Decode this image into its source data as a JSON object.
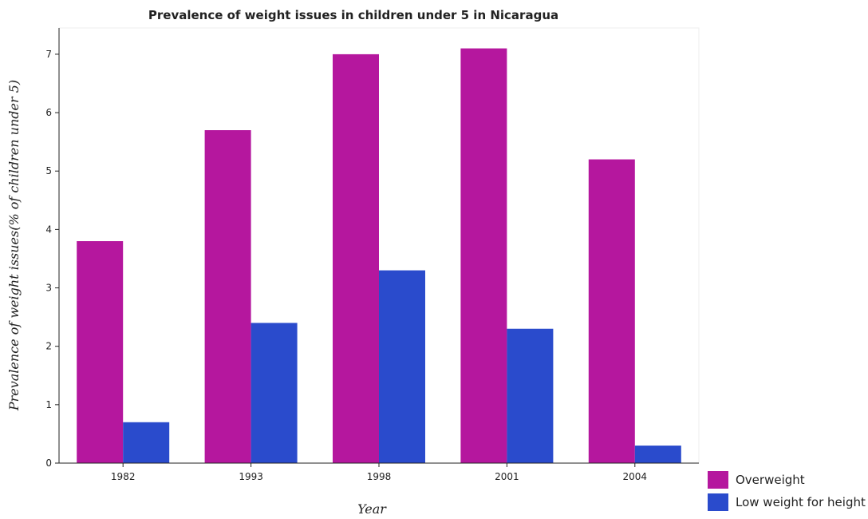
{
  "chart_data": {
    "type": "bar",
    "title": "Prevalence of weight issues in children under 5 in Nicaragua",
    "xlabel": "Year",
    "ylabel": "Prevalence of weight issues(% of children under 5)",
    "categories": [
      "1982",
      "1993",
      "1998",
      "2001",
      "2004"
    ],
    "series": [
      {
        "name": "Overweight",
        "color": "#b5179e",
        "values": [
          3.8,
          5.7,
          7.0,
          7.1,
          5.2
        ]
      },
      {
        "name": "Low weight for height",
        "color": "#2a4bcc",
        "values": [
          0.7,
          2.4,
          3.3,
          2.3,
          0.3
        ]
      }
    ],
    "ylim": [
      0,
      7.45
    ],
    "yticks": [
      "0",
      "1",
      "2",
      "3",
      "4",
      "5",
      "6",
      "7"
    ],
    "grid": false,
    "legend_position": "bottom-right"
  }
}
